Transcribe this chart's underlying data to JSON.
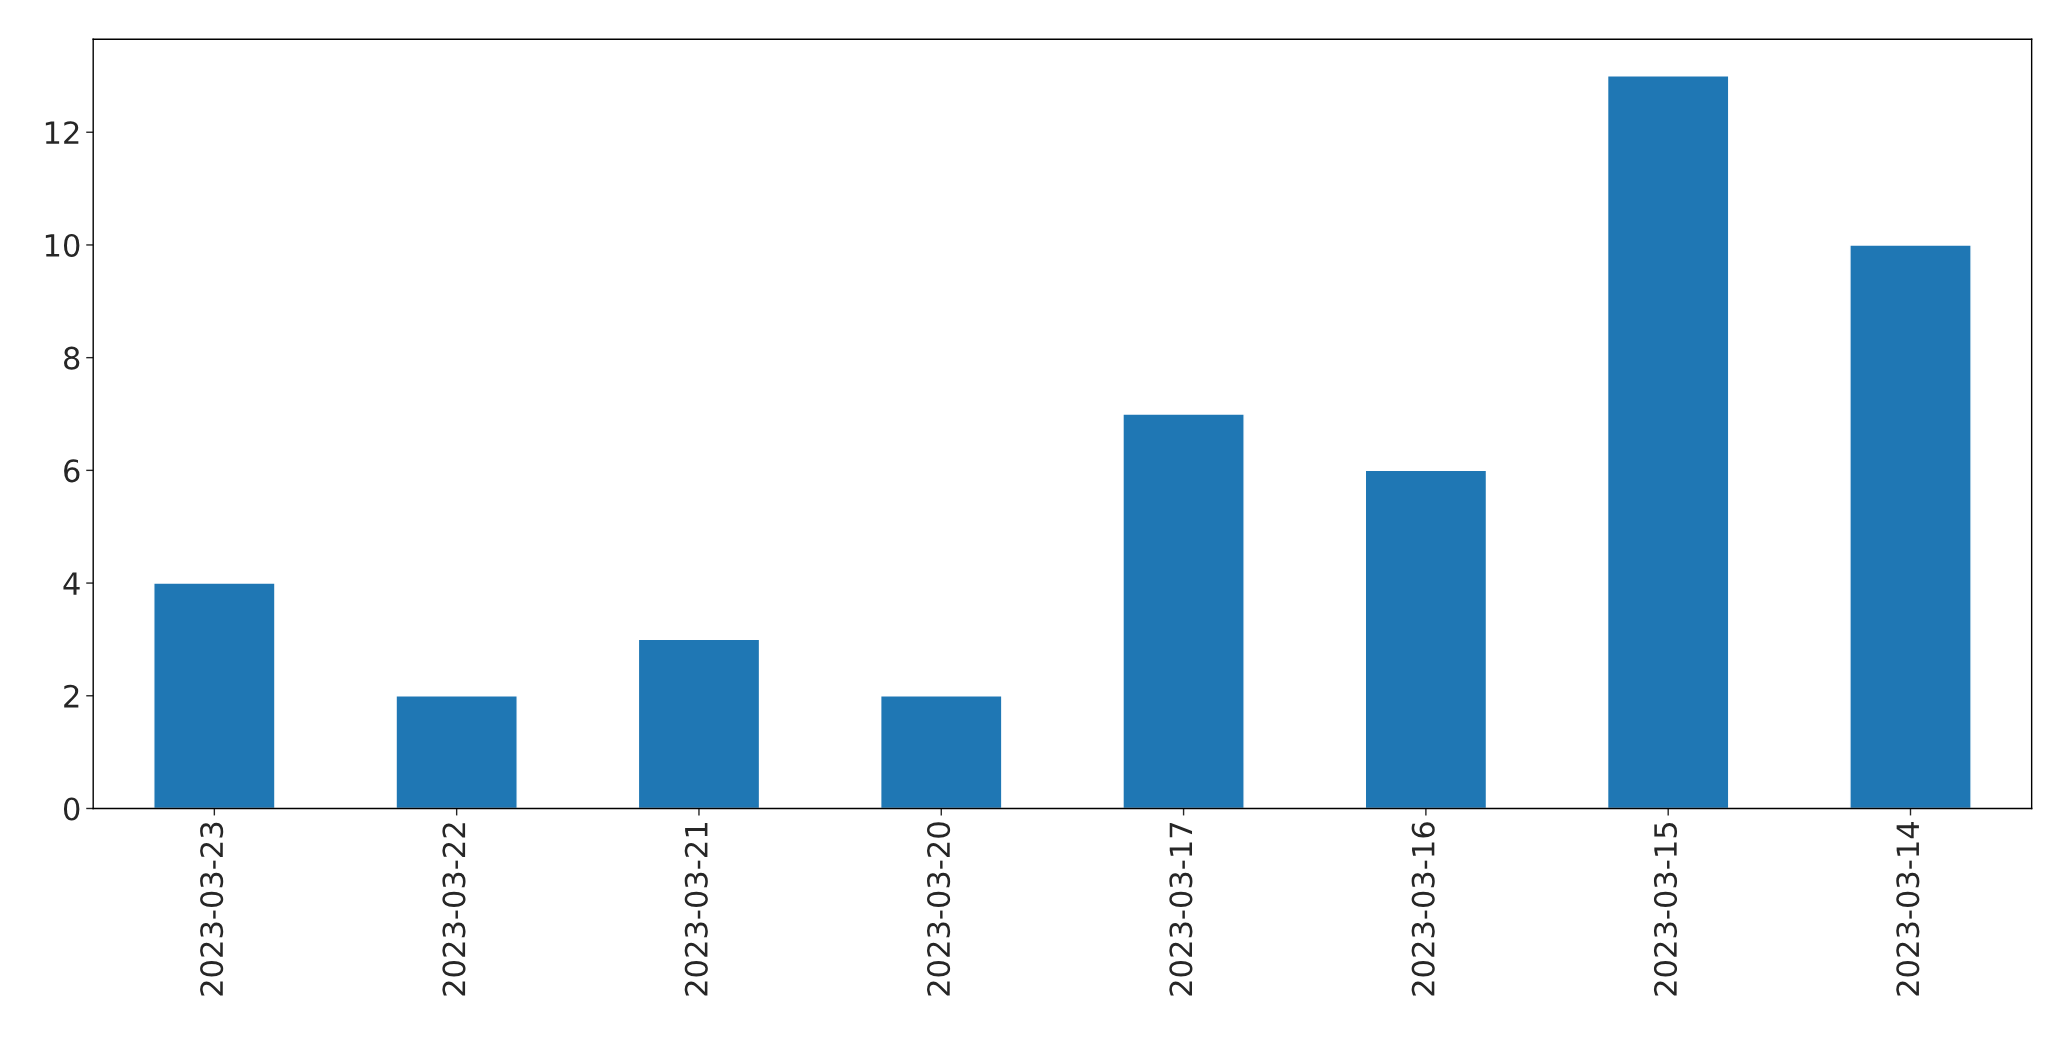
{
  "chart_data": {
    "type": "bar",
    "categories": [
      "2023-03-23",
      "2023-03-22",
      "2023-03-21",
      "2023-03-20",
      "2023-03-17",
      "2023-03-16",
      "2023-03-15",
      "2023-03-14"
    ],
    "values": [
      4,
      2,
      3,
      2,
      7,
      6,
      13,
      10
    ],
    "color": "#1f77b4",
    "ylim": [
      0,
      13.65
    ],
    "yticks": [
      0,
      2,
      4,
      6,
      8,
      10,
      12
    ],
    "grid": false,
    "legend": false
  }
}
